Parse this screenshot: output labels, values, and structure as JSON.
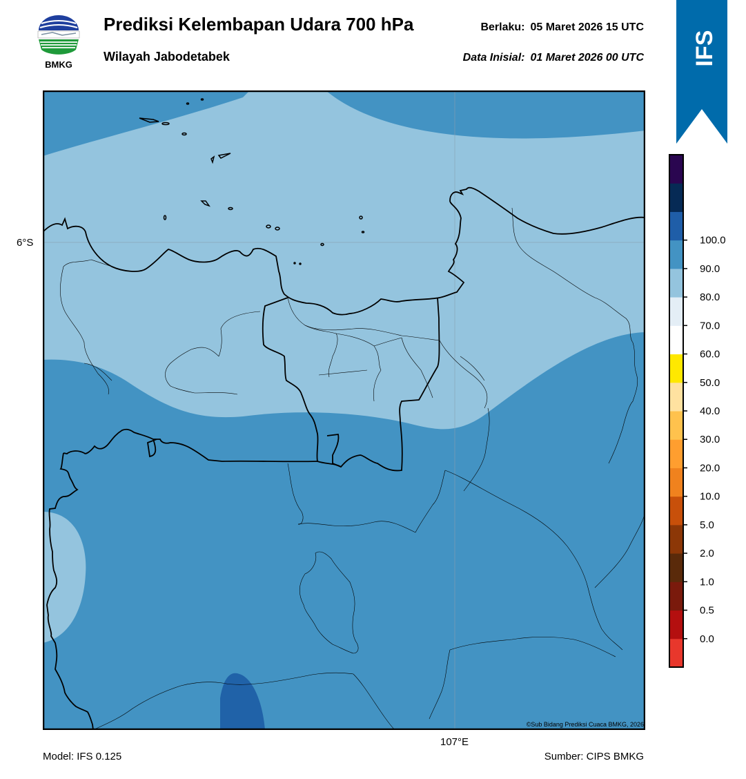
{
  "header": {
    "logo_text": "BMKG",
    "title": "Prediksi Kelembapan Udara 700 hPa",
    "subtitle": "Wilayah Jabodetabek",
    "valid_label": "Berlaku:",
    "valid_value": "05 Maret 2026 15 UTC",
    "init_label": "Data Inisial:",
    "init_value": "01 Maret 2026 00 UTC",
    "banner_text": "IFS"
  },
  "map": {
    "lat_label": "6°S",
    "lon_label": "107°E",
    "copyright": "©Sub Bidang Prediksi Cuaca BMKG, 2026"
  },
  "footer": {
    "model": "Model: IFS 0.125",
    "source": "Sumber: CIPS BMKG"
  },
  "colorbar": {
    "labels": [
      "0.0",
      "0.5",
      "1.0",
      "2.0",
      "5.0",
      "10.0",
      "20.0",
      "30.0",
      "40.0",
      "50.0",
      "60.0",
      "70.0",
      "80.0",
      "90.0",
      "100.0"
    ],
    "colors": [
      "#e8372c",
      "#b40f0f",
      "#7a1a0c",
      "#5a2a0a",
      "#8c3707",
      "#c8500a",
      "#f0821e",
      "#ff9e2f",
      "#ffc24d",
      "#ffe2a0",
      "#ffe800",
      "#ffffff",
      "#e4eef6",
      "#94c4de",
      "#4393c3",
      "#1f5ea8",
      "#062a55",
      "#2a0650"
    ]
  },
  "colors": {
    "light_blue": "#94c4de",
    "mid_blue": "#4393c3",
    "dark_blue": "#2062a8",
    "banner_blue": "#006bab"
  }
}
